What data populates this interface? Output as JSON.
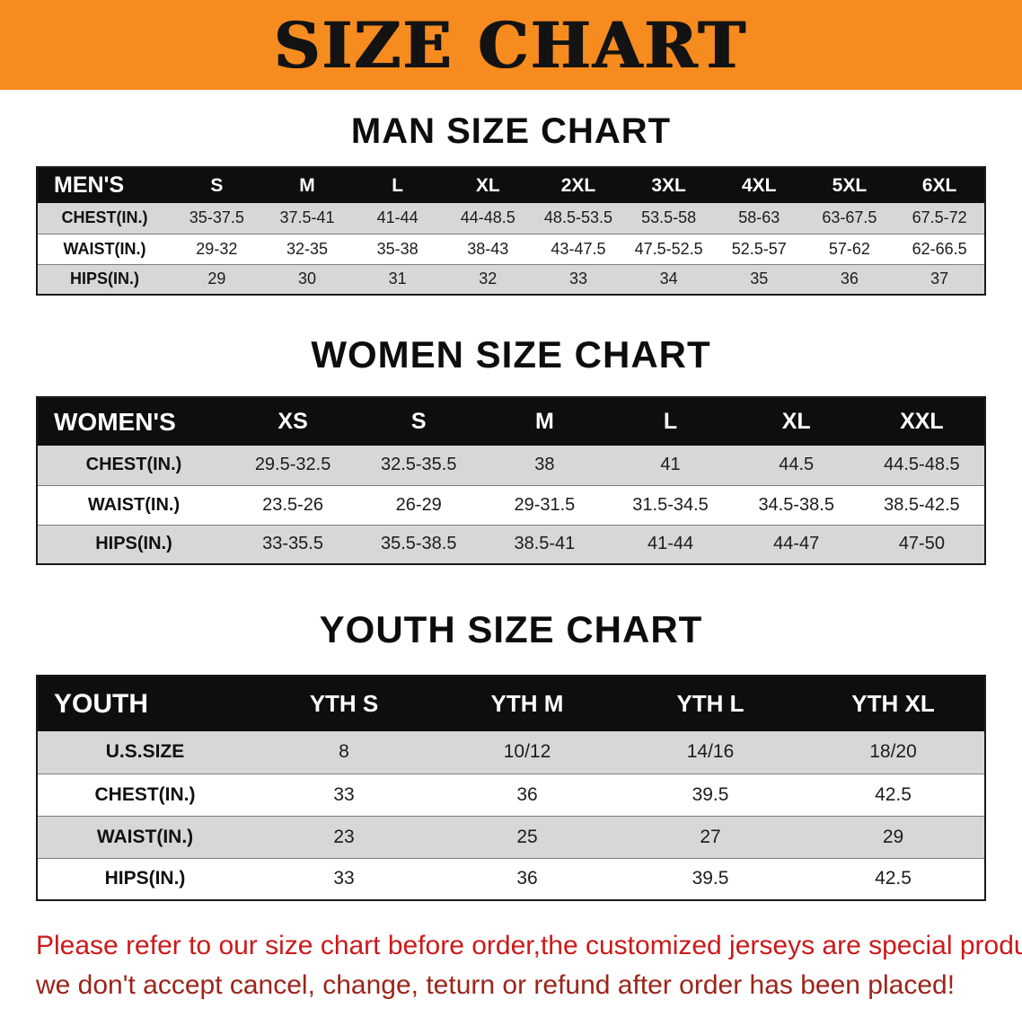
{
  "banner": {
    "title": "SIZE CHART"
  },
  "men": {
    "heading": "MAN SIZE CHART",
    "header": [
      "MEN'S",
      "S",
      "M",
      "L",
      "XL",
      "2XL",
      "3XL",
      "4XL",
      "5XL",
      "6XL"
    ],
    "rows": [
      [
        "CHEST(IN.)",
        "35-37.5",
        "37.5-41",
        "41-44",
        "44-48.5",
        "48.5-53.5",
        "53.5-58",
        "58-63",
        "63-67.5",
        "67.5-72"
      ],
      [
        "WAIST(IN.)",
        "29-32",
        "32-35",
        "35-38",
        "38-43",
        "43-47.5",
        "47.5-52.5",
        "52.5-57",
        "57-62",
        "62-66.5"
      ],
      [
        "HIPS(IN.)",
        "29",
        "30",
        "31",
        "32",
        "33",
        "34",
        "35",
        "36",
        "37"
      ]
    ]
  },
  "women": {
    "heading": "WOMEN SIZE CHART",
    "header": [
      "WOMEN'S",
      "XS",
      "S",
      "M",
      "L",
      "XL",
      "XXL"
    ],
    "rows": [
      [
        "CHEST(IN.)",
        "29.5-32.5",
        "32.5-35.5",
        "38",
        "41",
        "44.5",
        "44.5-48.5"
      ],
      [
        "WAIST(IN.)",
        "23.5-26",
        "26-29",
        "29-31.5",
        "31.5-34.5",
        "34.5-38.5",
        "38.5-42.5"
      ],
      [
        "HIPS(IN.)",
        "33-35.5",
        "35.5-38.5",
        "38.5-41",
        "41-44",
        "44-47",
        "47-50"
      ]
    ]
  },
  "youth": {
    "heading": "YOUTH SIZE CHART",
    "header": [
      "YOUTH",
      "YTH S",
      "YTH M",
      "YTH L",
      "YTH XL"
    ],
    "rows": [
      [
        "U.S.SIZE",
        "8",
        "10/12",
        "14/16",
        "18/20"
      ],
      [
        "CHEST(IN.)",
        "33",
        "36",
        "39.5",
        "42.5"
      ],
      [
        "WAIST(IN.)",
        "23",
        "25",
        "27",
        "29"
      ],
      [
        "HIPS(IN.)",
        "33",
        "36",
        "39.5",
        "42.5"
      ]
    ]
  },
  "note": {
    "line1": "Please refer to our size chart before order,the customized jerseys are special products,",
    "line2": "we don't accept cancel, change, teturn or refund after order has been placed!"
  },
  "colors": {
    "banner_orange": "#f68b1f",
    "header_black": "#0e0e0e",
    "stripe_gray": "#d7d7d7",
    "note_red": "#cb1a1a"
  }
}
